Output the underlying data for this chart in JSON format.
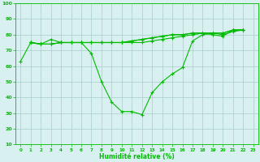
{
  "xlabel": "Humidité relative (%)",
  "background_color": "#d8f0f0",
  "grid_color": "#aacccc",
  "line_color": "#00bb00",
  "xlim": [
    -0.5,
    23.5
  ],
  "ylim": [
    10,
    100
  ],
  "yticks": [
    10,
    20,
    30,
    40,
    50,
    60,
    70,
    80,
    90,
    100
  ],
  "xticks": [
    0,
    1,
    2,
    3,
    4,
    5,
    6,
    7,
    8,
    9,
    10,
    11,
    12,
    13,
    14,
    15,
    16,
    17,
    18,
    19,
    20,
    21,
    22,
    23
  ],
  "line1_x": [
    0,
    1,
    2,
    3,
    4,
    5,
    6,
    7,
    8,
    9,
    10,
    11,
    12,
    13,
    14,
    15,
    16,
    17,
    18,
    19,
    20,
    21,
    22
  ],
  "line1_y": [
    63,
    75,
    74,
    74,
    75,
    75,
    75,
    68,
    50,
    37,
    31,
    31,
    29,
    43,
    50,
    55,
    59,
    76,
    80,
    81,
    80,
    82,
    83
  ],
  "line2_x": [
    1,
    2,
    3,
    4,
    5,
    6,
    7,
    8,
    9,
    10,
    11,
    12,
    13,
    14,
    15,
    16,
    17,
    18,
    19,
    20,
    21,
    22
  ],
  "line2_y": [
    75,
    74,
    77,
    75,
    75,
    75,
    75,
    75,
    75,
    75,
    76,
    77,
    78,
    79,
    80,
    80,
    81,
    81,
    81,
    81,
    83,
    83
  ],
  "line3_x": [
    1,
    2,
    3,
    4,
    5,
    6,
    7,
    8,
    9,
    10,
    11,
    12,
    13,
    14,
    15,
    16,
    17,
    18,
    19,
    20,
    21,
    22
  ],
  "line3_y": [
    75,
    74,
    74,
    75,
    75,
    75,
    75,
    75,
    75,
    75,
    76,
    77,
    78,
    79,
    80,
    80,
    81,
    81,
    80,
    79,
    83,
    83
  ],
  "line4_x": [
    1,
    2,
    3,
    4,
    5,
    6,
    7,
    8,
    9,
    10,
    11,
    12,
    13,
    14,
    15,
    16,
    17,
    18,
    19,
    20,
    21,
    22
  ],
  "line4_y": [
    75,
    74,
    74,
    75,
    75,
    75,
    75,
    75,
    75,
    75,
    75,
    75,
    76,
    77,
    78,
    79,
    80,
    81,
    81,
    81,
    83,
    83
  ]
}
